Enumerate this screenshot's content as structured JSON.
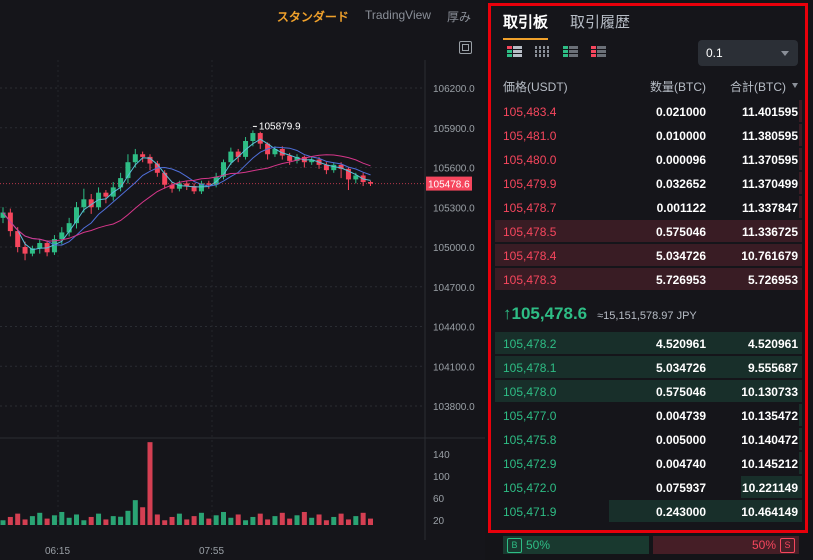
{
  "chart": {
    "tabs": [
      {
        "label": "スタンダード",
        "active": true
      },
      {
        "label": "TradingView",
        "active": false
      },
      {
        "label": "厚み",
        "active": false
      }
    ],
    "price_axis": [
      "106200.0",
      "105900.0",
      "105600.0",
      "105300.0",
      "105000.0",
      "104700.0",
      "104400.0",
      "104100.0",
      "103800.0"
    ],
    "current_price_tag": "105478.6",
    "high_marker": "105879.9",
    "volume_axis": [
      "140",
      "100",
      "60",
      "20"
    ],
    "time_axis": [
      "06:15",
      "07:55"
    ],
    "colors": {
      "up": "#2ebd85",
      "down": "#f6465d",
      "ma_pink": "#d6368a",
      "ma_blue": "#4f6fd9",
      "ma_cyan": "#59c2d9"
    }
  },
  "orderbook": {
    "tabs": [
      {
        "label": "取引板",
        "active": true
      },
      {
        "label": "取引履歴",
        "active": false
      }
    ],
    "view_icons": [
      "both-sides-view-icon",
      "buy-side-view-icon",
      "sell-side-view-icon",
      "trades-view-icon"
    ],
    "precision": "0.1",
    "headers": {
      "price": "価格(USDT)",
      "amount": "数量(BTC)",
      "total": "合計(BTC)"
    },
    "asks": [
      {
        "price": "105,483.4",
        "amount": "0.021000",
        "total": "11.401595",
        "depth": 0.01
      },
      {
        "price": "105,481.0",
        "amount": "0.010000",
        "total": "11.380595",
        "depth": 0.01
      },
      {
        "price": "105,480.0",
        "amount": "0.000096",
        "total": "11.370595",
        "depth": 0.01
      },
      {
        "price": "105,479.9",
        "amount": "0.032652",
        "total": "11.370499",
        "depth": 0.01
      },
      {
        "price": "105,478.7",
        "amount": "0.001122",
        "total": "11.337847",
        "depth": 0.01
      },
      {
        "price": "105,478.5",
        "amount": "0.575046",
        "total": "11.336725",
        "depth": 1.0
      },
      {
        "price": "105,478.4",
        "amount": "5.034726",
        "total": "10.761679",
        "depth": 1.0
      },
      {
        "price": "105,478.3",
        "amount": "5.726953",
        "total": "5.726953",
        "depth": 1.0
      }
    ],
    "last_price": "105,478.6",
    "last_price_conversion": "≈15,151,578.97 JPY",
    "bids": [
      {
        "price": "105,478.2",
        "amount": "4.520961",
        "total": "4.520961",
        "depth": 1.0
      },
      {
        "price": "105,478.1",
        "amount": "5.034726",
        "total": "9.555687",
        "depth": 1.0
      },
      {
        "price": "105,478.0",
        "amount": "0.575046",
        "total": "10.130733",
        "depth": 1.0
      },
      {
        "price": "105,477.0",
        "amount": "0.004739",
        "total": "10.135472",
        "depth": 0.01
      },
      {
        "price": "105,475.8",
        "amount": "0.005000",
        "total": "10.140472",
        "depth": 0.01
      },
      {
        "price": "105,472.9",
        "amount": "0.004740",
        "total": "10.145212",
        "depth": 0.01
      },
      {
        "price": "105,472.0",
        "amount": "0.075937",
        "total": "10.221149",
        "depth": 0.2
      },
      {
        "price": "105,471.9",
        "amount": "0.243000",
        "total": "10.464149",
        "depth": 0.63
      }
    ],
    "ratio": {
      "buy_label": "B",
      "buy_pct": "50%",
      "sell_label": "S",
      "sell_pct": "50%",
      "buy_fraction": 0.5
    }
  }
}
